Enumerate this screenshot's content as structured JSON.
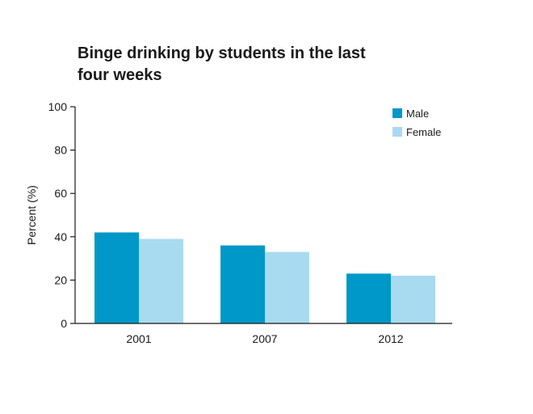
{
  "chart_data": {
    "type": "bar",
    "title": "Binge drinking by students in the last four weeks",
    "xlabel": "",
    "ylabel": "Percent (%)",
    "ylim": [
      0,
      100
    ],
    "yticks": [
      0,
      20,
      40,
      60,
      80,
      100
    ],
    "categories": [
      "2001",
      "2007",
      "2012"
    ],
    "series": [
      {
        "name": "Male",
        "values": [
          42,
          36,
          23
        ],
        "color": "#0098c8"
      },
      {
        "name": "Female",
        "values": [
          39,
          33,
          22
        ],
        "color": "#a8daf0"
      }
    ],
    "grid": false,
    "legend_position": "top-right"
  }
}
